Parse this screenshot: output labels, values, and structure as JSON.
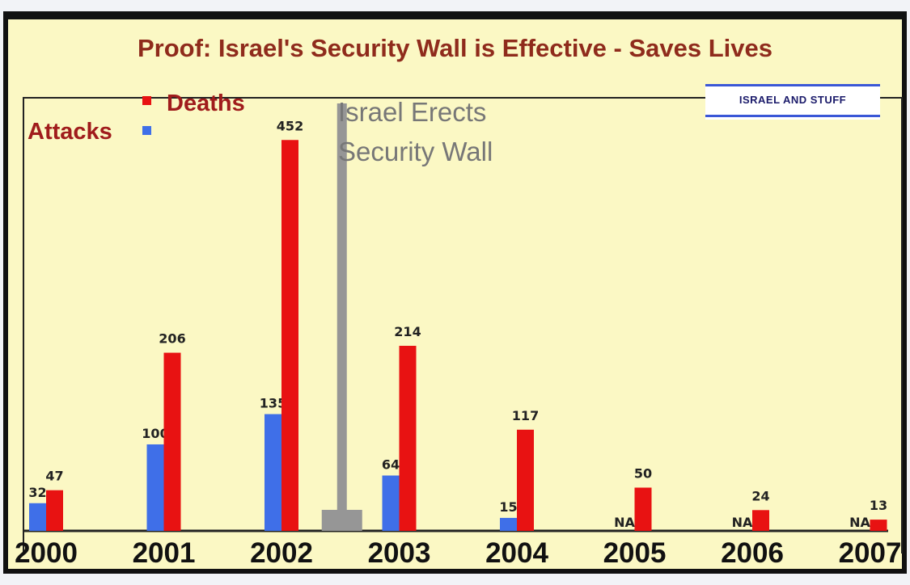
{
  "chart_data": {
    "type": "bar",
    "title": "Proof: Israel's Security Wall is Effective - Saves Lives",
    "categories": [
      "2000",
      "2001",
      "2002",
      "2003",
      "2004",
      "2005",
      "2006",
      "2007"
    ],
    "series": [
      {
        "name": "Attacks",
        "color": "#3f6fe8",
        "values": [
          32,
          100,
          135,
          64,
          15,
          null,
          null,
          null
        ],
        "labels": [
          "32",
          "100",
          "135",
          "64",
          "15",
          "NA",
          "NA",
          "NA"
        ]
      },
      {
        "name": "Deaths",
        "color": "#e81212",
        "values": [
          47,
          206,
          452,
          214,
          117,
          50,
          24,
          13
        ],
        "labels": [
          "47",
          "206",
          "452",
          "214",
          "117",
          "50",
          "24",
          "13"
        ]
      }
    ],
    "annotation": {
      "lines": [
        "Israel Erects",
        "Security Wall"
      ],
      "between": [
        "2002",
        "2003"
      ],
      "color": "#969696"
    },
    "ylim": [
      0,
      470
    ],
    "grid": false,
    "legend": "top-left",
    "logo_text": "ISRAEL AND STUFF"
  }
}
